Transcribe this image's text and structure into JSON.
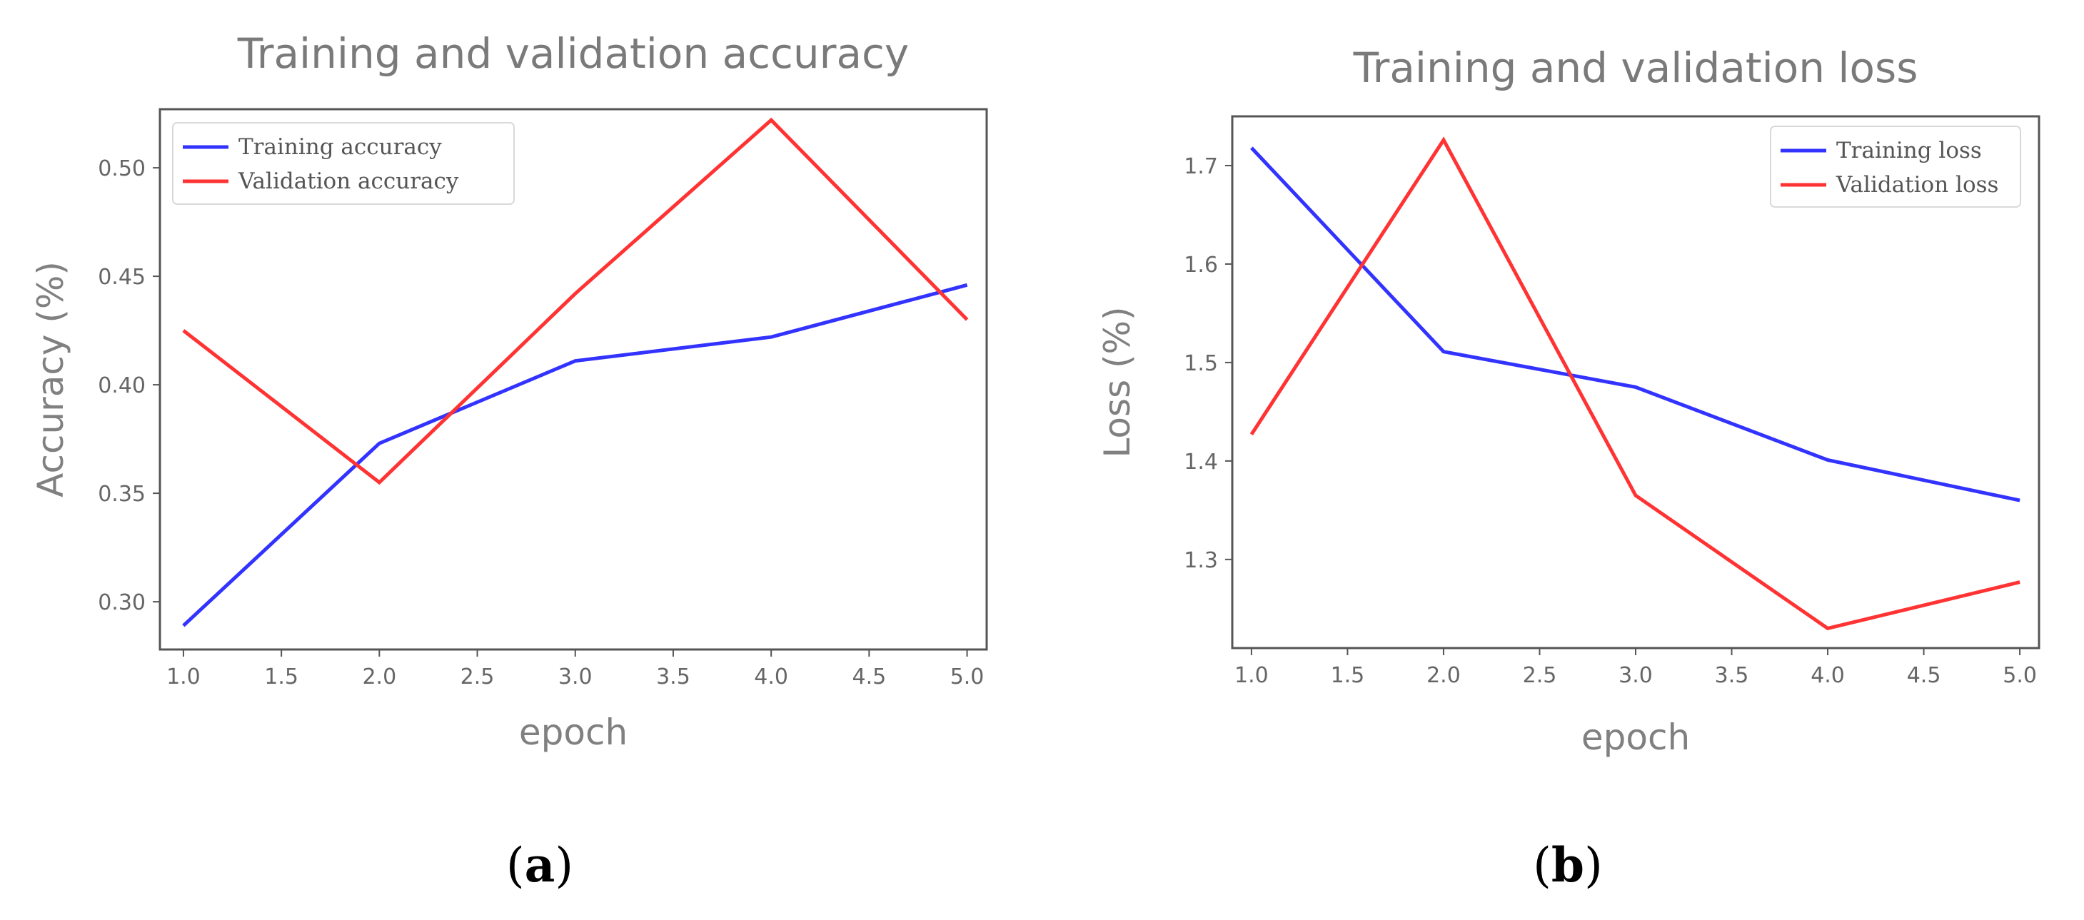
{
  "figure": {
    "panel_labels": [
      "a",
      "b"
    ]
  },
  "chart_data": [
    {
      "type": "line",
      "title": "Training and validation accuracy",
      "xlabel": "epoch",
      "ylabel": "Accuracy (%)",
      "xlim": [
        0.88,
        5.1
      ],
      "ylim": [
        0.278,
        0.527
      ],
      "xticks": [
        1.0,
        1.5,
        2.0,
        2.5,
        3.0,
        3.5,
        4.0,
        4.5,
        5.0
      ],
      "xtick_labels": [
        "1.0",
        "1.5",
        "2.0",
        "2.5",
        "3.0",
        "3.5",
        "4.0",
        "4.5",
        "5.0"
      ],
      "yticks": [
        0.3,
        0.35,
        0.4,
        0.45,
        0.5
      ],
      "ytick_labels": [
        "0.30",
        "0.35",
        "0.40",
        "0.45",
        "0.50"
      ],
      "grid": false,
      "legend_position": "top-left",
      "x": [
        1,
        2,
        3,
        4,
        5
      ],
      "series": [
        {
          "name": "Training accuracy",
          "color": "#3333ff",
          "values": [
            0.289,
            0.373,
            0.411,
            0.422,
            0.446
          ]
        },
        {
          "name": "Validation accuracy",
          "color": "#ff3333",
          "values": [
            0.425,
            0.355,
            0.442,
            0.522,
            0.43
          ]
        }
      ]
    },
    {
      "type": "line",
      "title": "Training and validation loss",
      "xlabel": "epoch",
      "ylabel": "Loss (%)",
      "xlim": [
        0.9,
        5.1
      ],
      "ylim": [
        1.21,
        1.75
      ],
      "xticks": [
        1.0,
        1.5,
        2.0,
        2.5,
        3.0,
        3.5,
        4.0,
        4.5,
        5.0
      ],
      "xtick_labels": [
        "1.0",
        "1.5",
        "2.0",
        "2.5",
        "3.0",
        "3.5",
        "4.0",
        "4.5",
        "5.0"
      ],
      "yticks": [
        1.3,
        1.4,
        1.5,
        1.6,
        1.7
      ],
      "ytick_labels": [
        "1.3",
        "1.4",
        "1.5",
        "1.6",
        "1.7"
      ],
      "grid": false,
      "legend_position": "top-right",
      "x": [
        1,
        2,
        3,
        4,
        5
      ],
      "series": [
        {
          "name": "Training loss",
          "color": "#3333ff",
          "values": [
            1.718,
            1.511,
            1.475,
            1.401,
            1.36
          ]
        },
        {
          "name": "Validation loss",
          "color": "#ff3333",
          "values": [
            1.427,
            1.726,
            1.365,
            1.23,
            1.277
          ]
        }
      ]
    }
  ]
}
